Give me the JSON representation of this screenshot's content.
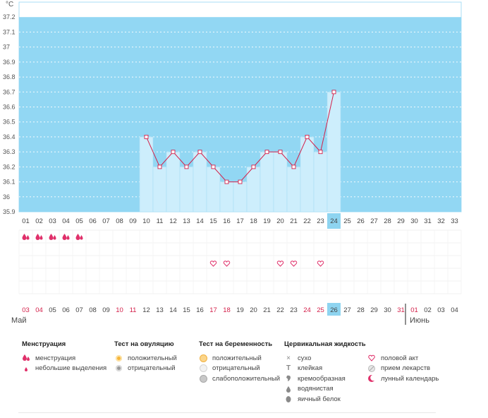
{
  "chart_data": {
    "type": "line",
    "y_unit": "°C",
    "ylim": [
      35.9,
      37.3
    ],
    "y_ticks": [
      "37.2",
      "37.1",
      "37",
      "36.9",
      "36.8",
      "36.7",
      "36.6",
      "36.5",
      "36.4",
      "36.3",
      "36.2",
      "36.1",
      "36",
      "35.9"
    ],
    "cycle_days": [
      "01",
      "02",
      "03",
      "04",
      "05",
      "06",
      "07",
      "08",
      "09",
      "10",
      "11",
      "12",
      "13",
      "14",
      "15",
      "16",
      "17",
      "18",
      "19",
      "20",
      "21",
      "22",
      "23",
      "24",
      "25",
      "26",
      "27",
      "28",
      "29",
      "30",
      "31",
      "32",
      "33"
    ],
    "temperatures": [
      null,
      null,
      null,
      null,
      null,
      null,
      null,
      null,
      null,
      36.4,
      36.2,
      36.3,
      36.2,
      36.3,
      36.2,
      36.1,
      36.1,
      36.2,
      36.3,
      36.3,
      36.2,
      36.4,
      36.3,
      36.7,
      null,
      null,
      null,
      null,
      null,
      null,
      null,
      null,
      null
    ],
    "current_day": "24",
    "grid": true,
    "calendar_dates": [
      {
        "d": "03",
        "red": true
      },
      {
        "d": "04",
        "red": true
      },
      {
        "d": "05",
        "red": false
      },
      {
        "d": "06",
        "red": false
      },
      {
        "d": "07",
        "red": false
      },
      {
        "d": "08",
        "red": false
      },
      {
        "d": "09",
        "red": false
      },
      {
        "d": "10",
        "red": true
      },
      {
        "d": "11",
        "red": true
      },
      {
        "d": "12",
        "red": false
      },
      {
        "d": "13",
        "red": false
      },
      {
        "d": "14",
        "red": false
      },
      {
        "d": "15",
        "red": false
      },
      {
        "d": "16",
        "red": false
      },
      {
        "d": "17",
        "red": true
      },
      {
        "d": "18",
        "red": true
      },
      {
        "d": "19",
        "red": false
      },
      {
        "d": "20",
        "red": false
      },
      {
        "d": "21",
        "red": false
      },
      {
        "d": "22",
        "red": false
      },
      {
        "d": "23",
        "red": false
      },
      {
        "d": "24",
        "red": true
      },
      {
        "d": "25",
        "red": true
      },
      {
        "d": "26",
        "red": false
      },
      {
        "d": "27",
        "red": false
      },
      {
        "d": "28",
        "red": false
      },
      {
        "d": "29",
        "red": false
      },
      {
        "d": "30",
        "red": false
      },
      {
        "d": "31",
        "red": true
      },
      {
        "d": "01",
        "red": true
      },
      {
        "d": "02",
        "red": false
      },
      {
        "d": "03",
        "red": false
      },
      {
        "d": "04",
        "red": false
      }
    ],
    "current_date_index": 23,
    "month_start": "Май",
    "month_next": "Июнь",
    "month_next_index": 29,
    "menstruation_days": [
      1,
      2,
      3,
      4,
      5
    ],
    "intercourse_days": [
      15,
      16,
      20,
      21,
      23
    ]
  },
  "legend": {
    "groups": [
      {
        "title": "Менструация",
        "items": [
          {
            "icon": "drop-double",
            "label": "менструация"
          },
          {
            "icon": "drop-small",
            "label": "небольшие выделения"
          }
        ]
      },
      {
        "title": "Тест на овуляцию",
        "items": [
          {
            "icon": "circle-orange",
            "label": "положительный"
          },
          {
            "icon": "circle-gray",
            "label": "отрицательный"
          }
        ]
      },
      {
        "title": "Тест на беременность",
        "items": [
          {
            "icon": "circle-orange-face",
            "label": "положительный"
          },
          {
            "icon": "circle-light",
            "label": "отрицательный"
          },
          {
            "icon": "circle-gray-face",
            "label": "слабоположительный"
          }
        ]
      },
      {
        "title": "Цервикальная жидкость",
        "items": [
          {
            "icon": "cross",
            "label": "сухо"
          },
          {
            "icon": "t-mark",
            "label": "клейкая"
          },
          {
            "icon": "blob",
            "label": "кремообразная"
          },
          {
            "icon": "drop-gray",
            "label": "водянистая"
          },
          {
            "icon": "egg-gray",
            "label": "яичный белок"
          }
        ]
      },
      {
        "title": "",
        "items": [
          {
            "icon": "heart",
            "label": "половой акт"
          },
          {
            "icon": "pill",
            "label": "прием лекарств"
          },
          {
            "icon": "moon",
            "label": "лунный календарь"
          }
        ]
      }
    ]
  },
  "colors": {
    "sky": "#92d7f3",
    "bar": "#cdeefc",
    "bar_border": "#a9def5",
    "line": "#d4204a",
    "point_fill": "#ffffff",
    "current": "#8ed4f0",
    "red_text": "#d4204a",
    "heart": "#e0306a",
    "drop": "#e0306a"
  }
}
